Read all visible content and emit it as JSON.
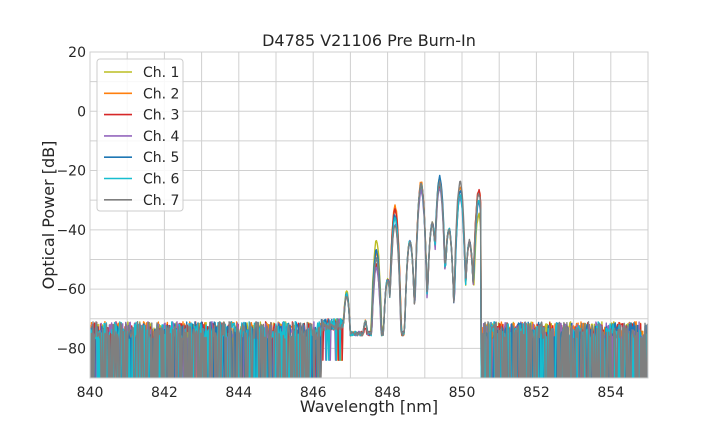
{
  "chart_data": {
    "type": "line",
    "title": "D4785 V21106 Pre Burn-In",
    "xlabel": "Wavelength [nm]",
    "ylabel": "Optical Power [dB]",
    "xlim": [
      840,
      855
    ],
    "ylim": [
      -90,
      20
    ],
    "xticks": [
      840,
      842,
      844,
      846,
      848,
      850,
      852,
      854
    ],
    "yticks": [
      20,
      0,
      -20,
      -40,
      -60,
      -80
    ],
    "grid": true,
    "legend_position": "top-left",
    "noise_floor_db": -80,
    "emission_band_nm": [
      846.8,
      850.5
    ],
    "series": [
      {
        "name": "Ch. 1",
        "color": "#bcbd22",
        "peaks": [
          [
            846.3,
            -70
          ],
          [
            846.9,
            -61
          ],
          [
            847.4,
            -71
          ],
          [
            847.7,
            -44
          ],
          [
            848.0,
            -57
          ],
          [
            848.2,
            -33
          ],
          [
            848.6,
            -44
          ],
          [
            848.9,
            -25
          ],
          [
            849.2,
            -38
          ],
          [
            849.4,
            -23
          ],
          [
            849.65,
            -40
          ],
          [
            849.95,
            -28
          ],
          [
            850.2,
            -44
          ],
          [
            850.45,
            -35
          ]
        ]
      },
      {
        "name": "Ch. 2",
        "color": "#ff7f0e",
        "peaks": [
          [
            846.3,
            -70
          ],
          [
            846.9,
            -62
          ],
          [
            847.4,
            -71
          ],
          [
            847.7,
            -48
          ],
          [
            848.0,
            -57
          ],
          [
            848.2,
            -32
          ],
          [
            848.6,
            -44
          ],
          [
            848.9,
            -24
          ],
          [
            849.2,
            -38
          ],
          [
            849.4,
            -24
          ],
          [
            849.65,
            -40
          ],
          [
            849.95,
            -26
          ],
          [
            850.2,
            -44
          ],
          [
            850.45,
            -27
          ]
        ]
      },
      {
        "name": "Ch. 3",
        "color": "#d62728",
        "peaks": [
          [
            846.3,
            -70
          ],
          [
            846.9,
            -62
          ],
          [
            847.4,
            -73
          ],
          [
            847.7,
            -52
          ],
          [
            848.0,
            -57
          ],
          [
            848.2,
            -33
          ],
          [
            848.6,
            -44
          ],
          [
            848.9,
            -25
          ],
          [
            849.2,
            -38
          ],
          [
            849.4,
            -25
          ],
          [
            849.65,
            -40
          ],
          [
            849.95,
            -28
          ],
          [
            850.2,
            -44
          ],
          [
            850.45,
            -27
          ]
        ]
      },
      {
        "name": "Ch. 4",
        "color": "#9467bd",
        "peaks": [
          [
            846.3,
            -70
          ],
          [
            846.9,
            -62
          ],
          [
            847.4,
            -71
          ],
          [
            847.7,
            -53
          ],
          [
            848.0,
            -57
          ],
          [
            848.2,
            -38
          ],
          [
            848.6,
            -44
          ],
          [
            848.9,
            -27
          ],
          [
            849.2,
            -38
          ],
          [
            849.4,
            -26
          ],
          [
            849.65,
            -40
          ],
          [
            849.95,
            -29
          ],
          [
            850.2,
            -44
          ],
          [
            850.45,
            -31
          ]
        ]
      },
      {
        "name": "Ch. 5",
        "color": "#1f77b4",
        "peaks": [
          [
            846.3,
            -70
          ],
          [
            846.9,
            -62
          ],
          [
            847.4,
            -71
          ],
          [
            847.7,
            -47
          ],
          [
            848.0,
            -57
          ],
          [
            848.2,
            -35
          ],
          [
            848.6,
            -44
          ],
          [
            848.9,
            -25
          ],
          [
            849.2,
            -38
          ],
          [
            849.4,
            -22
          ],
          [
            849.65,
            -40
          ],
          [
            849.95,
            -27
          ],
          [
            850.2,
            -44
          ],
          [
            850.45,
            -30
          ]
        ]
      },
      {
        "name": "Ch. 6",
        "color": "#17becf",
        "peaks": [
          [
            846.3,
            -70
          ],
          [
            846.9,
            -62
          ],
          [
            847.4,
            -71
          ],
          [
            847.7,
            -50
          ],
          [
            848.0,
            -57
          ],
          [
            848.2,
            -36
          ],
          [
            848.6,
            -44
          ],
          [
            848.9,
            -25
          ],
          [
            849.2,
            -38
          ],
          [
            849.4,
            -24
          ],
          [
            849.65,
            -40
          ],
          [
            849.95,
            -28
          ],
          [
            850.2,
            -44
          ],
          [
            850.45,
            -30
          ]
        ]
      },
      {
        "name": "Ch. 7",
        "color": "#7f7f7f",
        "peaks": [
          [
            846.3,
            -70
          ],
          [
            846.9,
            -62
          ],
          [
            847.4,
            -71
          ],
          [
            847.7,
            -50
          ],
          [
            848.0,
            -57
          ],
          [
            848.2,
            -38
          ],
          [
            848.6,
            -44
          ],
          [
            848.9,
            -25
          ],
          [
            849.2,
            -38
          ],
          [
            849.4,
            -24
          ],
          [
            849.65,
            -40
          ],
          [
            849.95,
            -24
          ],
          [
            850.2,
            -44
          ],
          [
            850.45,
            -28
          ]
        ]
      }
    ]
  }
}
